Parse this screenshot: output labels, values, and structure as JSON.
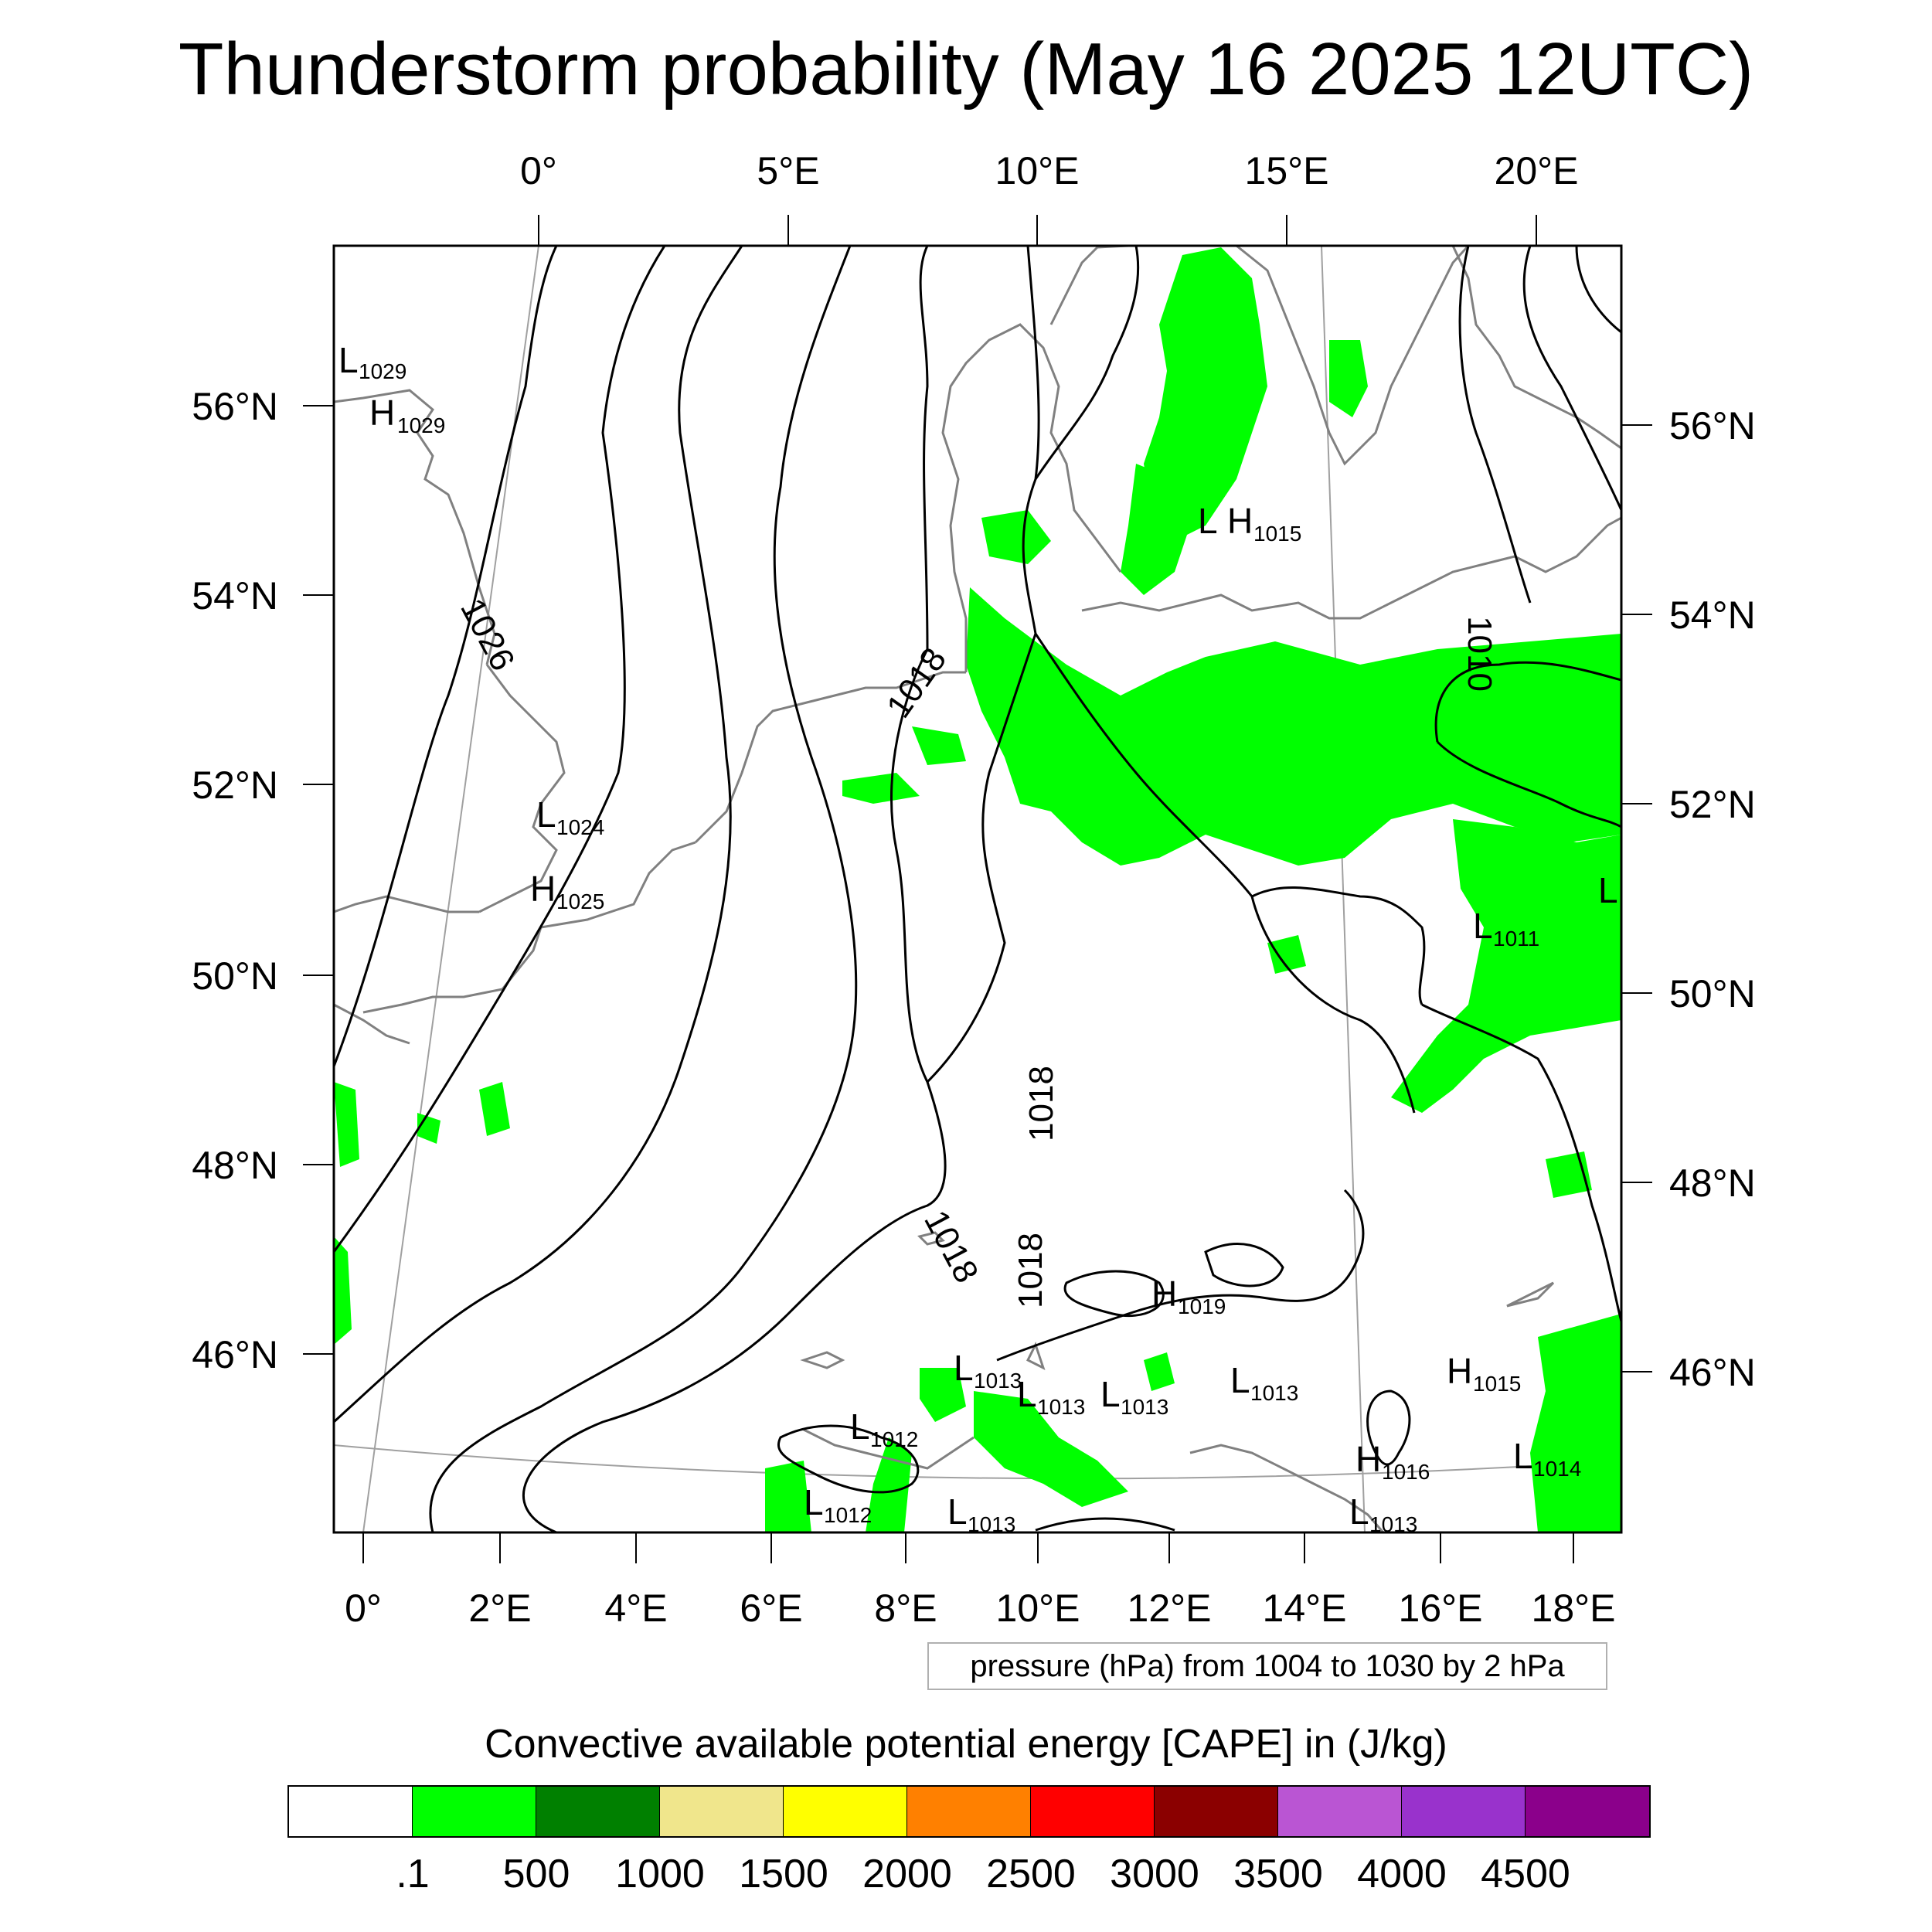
{
  "title": "Thunderstorm probability (May 16 2025 12UTC)",
  "top_lon_labels": [
    "0°",
    "5°E",
    "10°E",
    "15°E",
    "20°E"
  ],
  "bottom_lon_labels": [
    "0°",
    "2°E",
    "4°E",
    "6°E",
    "8°E",
    "10°E",
    "12°E",
    "14°E",
    "16°E",
    "18°E"
  ],
  "left_lat_labels": [
    "56°N",
    "54°N",
    "52°N",
    "50°N",
    "48°N",
    "46°N"
  ],
  "right_lat_labels": [
    "56°N",
    "54°N",
    "52°N",
    "50°N",
    "48°N",
    "46°N"
  ],
  "isobar_labels": [
    "1026",
    "1018",
    "1010",
    "1018",
    "1018",
    "1018"
  ],
  "pressure_centers": [
    {
      "type": "L",
      "value": "1029"
    },
    {
      "type": "H",
      "value": "1029"
    },
    {
      "type": "L",
      "value": "1024"
    },
    {
      "type": "H",
      "value": "1025"
    },
    {
      "type": "L",
      "value": ""
    },
    {
      "type": "H",
      "value": "1015"
    },
    {
      "type": "L",
      "value": ""
    },
    {
      "type": "L",
      "value": "1011"
    },
    {
      "type": "H",
      "value": "1019"
    },
    {
      "type": "L",
      "value": "1013"
    },
    {
      "type": "L",
      "value": "1013"
    },
    {
      "type": "L",
      "value": "1013"
    },
    {
      "type": "L",
      "value": "1013"
    },
    {
      "type": "L",
      "value": "1012"
    },
    {
      "type": "L",
      "value": "1012"
    },
    {
      "type": "L",
      "value": "1013"
    },
    {
      "type": "H",
      "value": "1015"
    },
    {
      "type": "H",
      "value": "1016"
    },
    {
      "type": "L",
      "value": "1014"
    },
    {
      "type": "L",
      "value": "1013"
    }
  ],
  "pressure_note": "pressure (hPa) from 1004 to 1030 by 2 hPa",
  "cape": {
    "title": "Convective available potential energy [CAPE] in (J/kg)",
    "colors": [
      "#ffffff",
      "#00ff00",
      "#008000",
      "#f0e68c",
      "#ffff00",
      "#ff8000",
      "#ff0000",
      "#8b0000",
      "#ba55d3",
      "#9932cc",
      "#8b008b"
    ],
    "labels": [
      ".1",
      "500",
      "1000",
      "1500",
      "2000",
      "2500",
      "3000",
      "3500",
      "4000",
      "4500"
    ]
  },
  "map_colors": {
    "cape_fill": "#00ff00",
    "coastline": "#808080",
    "isobar": "#000000",
    "graticule": "#a0a0a0"
  }
}
